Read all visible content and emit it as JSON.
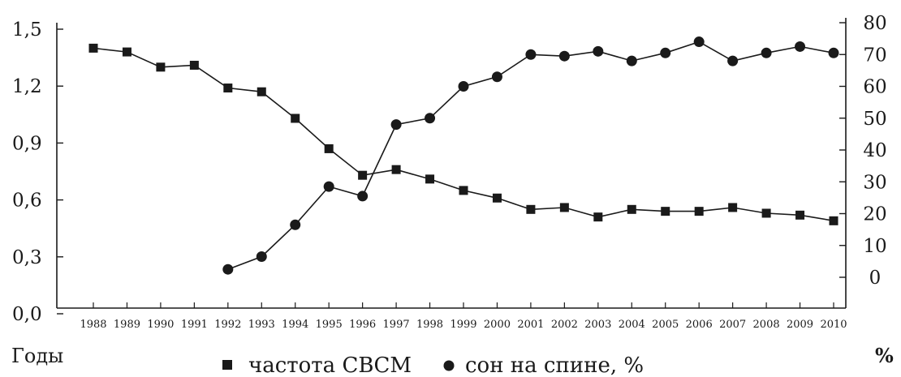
{
  "chart_data": {
    "type": "line",
    "x": [
      "1988",
      "1989",
      "1990",
      "1991",
      "1992",
      "1993",
      "1994",
      "1995",
      "1996",
      "1997",
      "1998",
      "1999",
      "2000",
      "2001",
      "2002",
      "2003",
      "2004",
      "2005",
      "2006",
      "2007",
      "2008",
      "2009",
      "2010"
    ],
    "series": [
      {
        "name": "частота СВСМ",
        "axis": "left",
        "marker": "square",
        "values": [
          1.4,
          1.38,
          1.3,
          1.31,
          1.19,
          1.17,
          1.03,
          0.87,
          0.73,
          0.76,
          0.71,
          0.65,
          0.61,
          0.55,
          0.56,
          0.51,
          0.55,
          0.54,
          0.54,
          0.56,
          0.53,
          0.52,
          0.49
        ]
      },
      {
        "name": "сон на спине, %",
        "axis": "right",
        "marker": "circle",
        "values": [
          null,
          null,
          null,
          null,
          2.5,
          6.5,
          16.5,
          28.5,
          25.5,
          48,
          50,
          60,
          63,
          70,
          69.5,
          71,
          68,
          70.5,
          74,
          68,
          70.5,
          72.5,
          70.5
        ]
      }
    ],
    "y_left": {
      "ticks": [
        "0,0",
        "0,3",
        "0,6",
        "0,9",
        "1,2",
        "1,5"
      ],
      "tick_values": [
        0.0,
        0.3,
        0.6,
        0.9,
        1.2,
        1.5
      ],
      "ylim": [
        0,
        1.5
      ]
    },
    "y_right": {
      "ticks": [
        "0",
        "10",
        "20",
        "30",
        "40",
        "50",
        "60",
        "70",
        "80"
      ],
      "tick_values": [
        0,
        10,
        20,
        30,
        40,
        50,
        60,
        70,
        80
      ],
      "ylim": [
        0,
        80
      ]
    },
    "xlabel": "Годы",
    "ylabel_right": "%",
    "legend": [
      {
        "marker": "square",
        "label": "частота СВСМ"
      },
      {
        "marker": "circle",
        "label": "сон на спине, %"
      }
    ],
    "grid": false,
    "colors": {
      "ink": "#1a1a1a",
      "background": "#ffffff"
    }
  }
}
